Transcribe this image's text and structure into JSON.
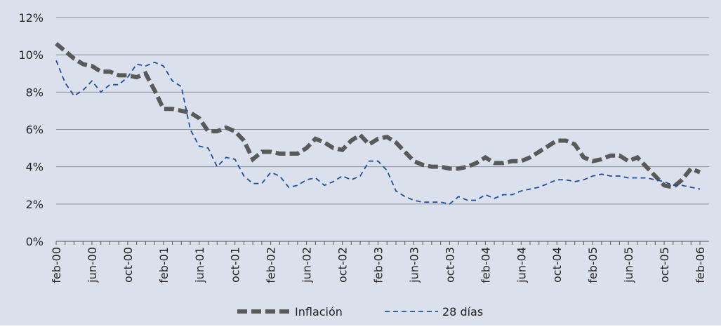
{
  "chart_data": {
    "type": "line",
    "categories": [
      "feb-00",
      null,
      null,
      null,
      "jun-00",
      null,
      null,
      null,
      "oct-00",
      null,
      null,
      null,
      "feb-01",
      null,
      null,
      null,
      "jun-01",
      null,
      null,
      null,
      "oct-01",
      null,
      null,
      null,
      "feb-02",
      null,
      null,
      null,
      "jun-02",
      null,
      null,
      null,
      "oct-02",
      null,
      null,
      null,
      "feb-03",
      null,
      null,
      null,
      "jun-03",
      null,
      null,
      null,
      "oct-03",
      null,
      null,
      null,
      "feb-04",
      null,
      null,
      null,
      "jun-04",
      null,
      null,
      null,
      "oct-04",
      null,
      null,
      null,
      "feb-05",
      null,
      null,
      null,
      "jun-05",
      null,
      null,
      null,
      "oct-05",
      null,
      null,
      null,
      "feb-06"
    ],
    "series": [
      {
        "name": "Inflación",
        "color": "#595959",
        "values": [
          10.6,
          10.2,
          9.8,
          9.5,
          9.4,
          9.1,
          9.1,
          8.9,
          8.9,
          8.8,
          9.0,
          8.1,
          7.1,
          7.1,
          7.0,
          6.9,
          6.6,
          5.9,
          5.9,
          6.1,
          5.9,
          5.4,
          4.4,
          4.8,
          4.8,
          4.7,
          4.7,
          4.7,
          5.0,
          5.5,
          5.3,
          5.0,
          4.9,
          5.4,
          5.7,
          5.2,
          5.5,
          5.6,
          5.3,
          4.8,
          4.3,
          4.1,
          4.0,
          4.0,
          3.9,
          3.9,
          4.0,
          4.2,
          4.5,
          4.2,
          4.2,
          4.3,
          4.3,
          4.5,
          4.8,
          5.1,
          5.4,
          5.4,
          5.2,
          4.5,
          4.3,
          4.4,
          4.6,
          4.6,
          4.3,
          4.5,
          4.0,
          3.5,
          3.0,
          2.9,
          3.3,
          3.9,
          3.7
        ]
      },
      {
        "name": "28 días",
        "color": "#1f4e9c",
        "values": [
          9.7,
          8.5,
          7.8,
          8.1,
          8.6,
          8.0,
          8.4,
          8.4,
          8.8,
          9.5,
          9.4,
          9.6,
          9.4,
          8.6,
          8.3,
          6.0,
          5.1,
          5.0,
          4.0,
          4.5,
          4.4,
          3.5,
          3.1,
          3.1,
          3.7,
          3.5,
          2.9,
          3.0,
          3.3,
          3.4,
          3.0,
          3.2,
          3.5,
          3.3,
          3.5,
          4.3,
          4.3,
          3.8,
          2.7,
          2.4,
          2.2,
          2.1,
          2.1,
          2.1,
          2.0,
          2.4,
          2.2,
          2.2,
          2.5,
          2.3,
          2.5,
          2.5,
          2.7,
          2.8,
          2.9,
          3.1,
          3.3,
          3.3,
          3.2,
          3.3,
          3.5,
          3.6,
          3.5,
          3.5,
          3.4,
          3.4,
          3.4,
          3.3,
          3.2,
          3.0,
          3.0,
          2.9,
          2.8
        ]
      }
    ],
    "ylim": [
      0,
      12
    ],
    "yticks": [
      {
        "value": 0,
        "label": "0%"
      },
      {
        "value": 2,
        "label": "2%"
      },
      {
        "value": 4,
        "label": "4%"
      },
      {
        "value": 6,
        "label": "6%"
      },
      {
        "value": 8,
        "label": "8%"
      },
      {
        "value": 10,
        "label": "10%"
      },
      {
        "value": 12,
        "label": "12%"
      }
    ],
    "grid": true
  }
}
